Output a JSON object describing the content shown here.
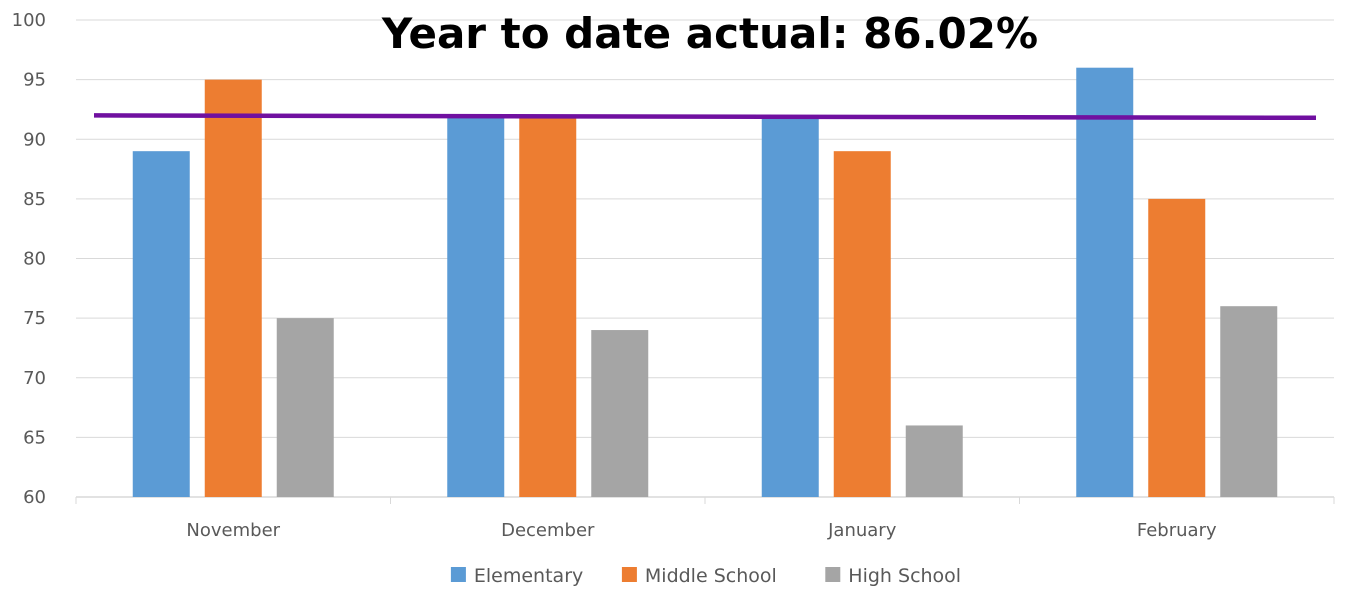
{
  "chart_data": {
    "type": "bar",
    "title": "Year to date actual:  86.02%",
    "categories": [
      "November",
      "December",
      "January",
      "February"
    ],
    "series": [
      {
        "name": "Elementary",
        "values": [
          89,
          92,
          92,
          96
        ],
        "color": "#5B9BD5"
      },
      {
        "name": "Middle School",
        "values": [
          95,
          92,
          89,
          85
        ],
        "color": "#ED7D31"
      },
      {
        "name": "High School",
        "values": [
          75,
          74,
          66,
          76
        ],
        "color": "#A5A5A5"
      }
    ],
    "ylim": [
      60,
      100
    ],
    "yticks": [
      60,
      65,
      70,
      75,
      80,
      85,
      90,
      95,
      100
    ],
    "target_line": {
      "start_value": 92,
      "end_value": 91.8,
      "color": "#7010A0"
    },
    "grid": true,
    "legend_position": "bottom",
    "xlabel": "",
    "ylabel": ""
  }
}
